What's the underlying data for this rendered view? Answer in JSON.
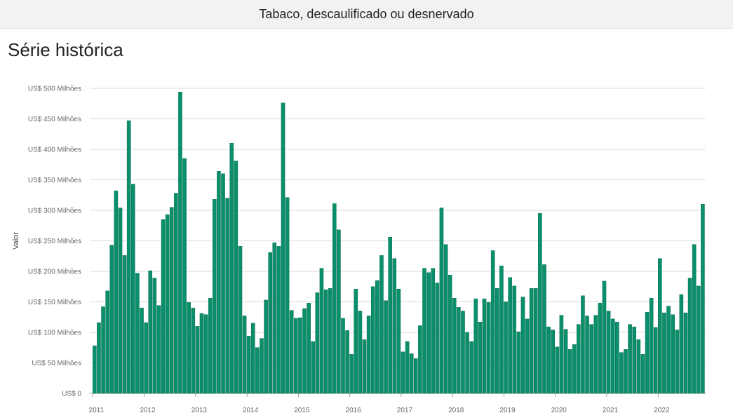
{
  "header": {
    "title": "Tabaco, descaulificado ou desnervado"
  },
  "section": {
    "title": "Série histórica"
  },
  "chart_data": {
    "type": "bar",
    "title": "",
    "xlabel": "",
    "ylabel": "Valor",
    "ylim": [
      0,
      500
    ],
    "y_ticks": [
      0,
      50,
      100,
      150,
      200,
      250,
      300,
      350,
      400,
      450,
      500
    ],
    "y_tick_labels": [
      "US$ 0",
      "US$ 50 Milhões",
      "US$ 100 Milhões",
      "US$ 150 Milhões",
      "US$ 200 Milhões",
      "US$ 250 Milhões",
      "US$ 300 Milhões",
      "US$ 350 Milhões",
      "US$ 400 Milhões",
      "US$ 450 Milhões",
      "US$ 500 Milhões"
    ],
    "x_tick_labels": [
      "2011",
      "2012",
      "2013",
      "2014",
      "2015",
      "2016",
      "2017",
      "2018",
      "2019",
      "2020",
      "2021",
      "2022"
    ],
    "grid": true,
    "bar_color": "#0a8f6b",
    "start_year": 2011,
    "start_month": 1,
    "values": [
      78,
      116,
      142,
      168,
      243,
      332,
      304,
      226,
      447,
      343,
      197,
      140,
      116,
      201,
      189,
      144,
      285,
      293,
      305,
      328,
      494,
      385,
      149,
      140,
      110,
      131,
      129,
      156,
      318,
      364,
      360,
      320,
      410,
      381,
      241,
      127,
      94,
      115,
      75,
      90,
      153,
      231,
      247,
      241,
      476,
      321,
      136,
      123,
      124,
      139,
      148,
      85,
      165,
      205,
      170,
      172,
      311,
      268,
      123,
      103,
      64,
      171,
      135,
      88,
      127,
      175,
      185,
      226,
      152,
      256,
      221,
      171,
      68,
      85,
      65,
      57,
      111,
      205,
      198,
      205,
      181,
      304,
      244,
      194,
      156,
      141,
      135,
      100,
      85,
      155,
      117,
      155,
      149,
      234,
      172,
      209,
      150,
      190,
      176,
      101,
      158,
      122,
      172,
      172,
      295,
      211,
      109,
      104,
      76,
      128,
      105,
      72,
      80,
      113,
      160,
      127,
      113,
      128,
      148,
      184,
      135,
      122,
      117,
      67,
      72,
      113,
      109,
      88,
      64,
      133,
      156,
      108,
      221,
      132,
      143,
      129,
      104,
      162,
      132,
      189,
      244,
      176,
      310
    ]
  }
}
